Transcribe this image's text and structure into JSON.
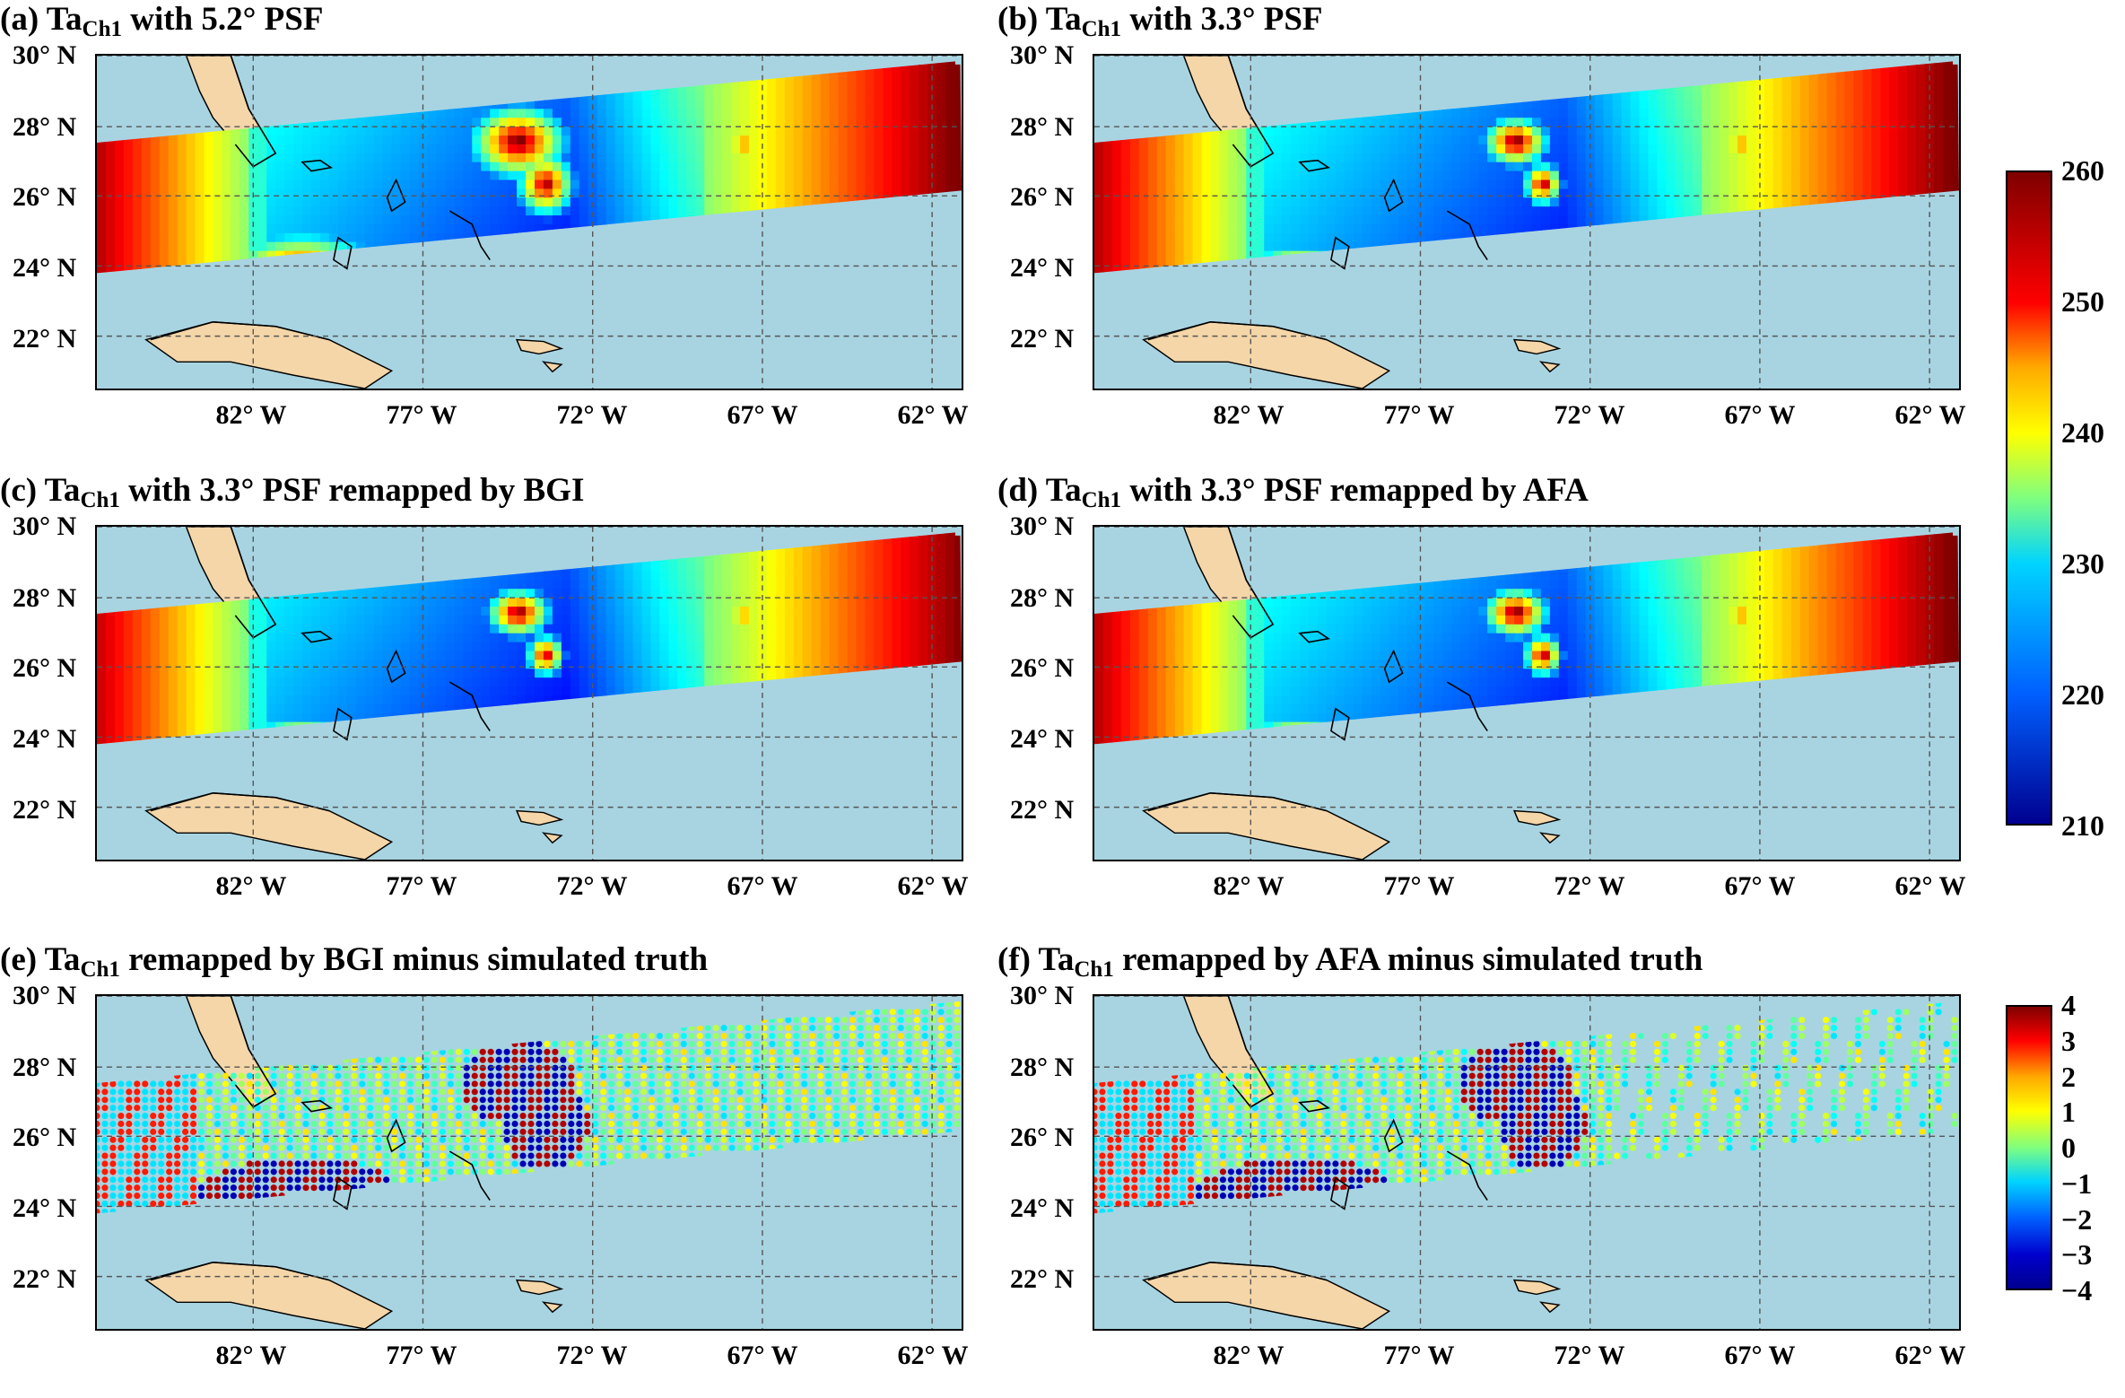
{
  "panels": [
    {
      "prefix": "(a) Ta",
      "sub": "Ch1",
      "suffix": " with 5.2° PSF",
      "kind": "ta",
      "variant": 0
    },
    {
      "prefix": "(b) Ta",
      "sub": "Ch1",
      "suffix": " with 3.3° PSF",
      "kind": "ta",
      "variant": 1
    },
    {
      "prefix": "(c) Ta",
      "sub": "Ch1",
      "suffix": " with 3.3° PSF remapped by BGI",
      "kind": "ta",
      "variant": 2
    },
    {
      "prefix": "(d) Ta",
      "sub": "Ch1",
      "suffix": " with 3.3° PSF remapped by AFA",
      "kind": "ta",
      "variant": 1
    },
    {
      "prefix": "(e) Ta",
      "sub": "Ch1",
      "suffix": " remapped by BGI minus simulated truth",
      "kind": "diff",
      "variant": 0
    },
    {
      "prefix": "(f) Ta",
      "sub": "Ch1",
      "suffix": " remapped by AFA minus simulated truth",
      "kind": "diff",
      "variant": 1
    }
  ],
  "axes": {
    "y_ticks": [
      "30° N",
      "28° N",
      "26° N",
      "24° N",
      "22° N"
    ],
    "x_ticks": [
      "82° W",
      "77° W",
      "72° W",
      "67° W",
      "62° W"
    ]
  },
  "colorbar_ta": {
    "min": 210,
    "max": 260,
    "ticks": [
      "260",
      "250",
      "240",
      "230",
      "220",
      "210"
    ]
  },
  "colorbar_diff": {
    "min": -4,
    "max": 4,
    "ticks": [
      "4",
      "3",
      "2",
      "1",
      "0",
      "−1",
      "−2",
      "−3",
      "−4"
    ]
  },
  "colors": {
    "ocean": "#a8d4e2",
    "land": "#f5d6a8",
    "grid": "#555555"
  },
  "chart_data": [
    {
      "type": "heatmap",
      "title": "(a) TaCh1 with 5.2° PSF",
      "x_range": [
        "85° W",
        "61° W"
      ],
      "y_range": [
        "20.7° N",
        "30.3° N"
      ],
      "value_range": [
        210,
        260
      ]
    },
    {
      "type": "heatmap",
      "title": "(b) TaCh1 with 3.3° PSF",
      "x_range": [
        "85° W",
        "61° W"
      ],
      "y_range": [
        "20.7° N",
        "30.3° N"
      ],
      "value_range": [
        210,
        260
      ]
    },
    {
      "type": "heatmap",
      "title": "(c) TaCh1 with 3.3° PSF remapped by BGI",
      "x_range": [
        "85° W",
        "61° W"
      ],
      "y_range": [
        "20.7° N",
        "30.3° N"
      ],
      "value_range": [
        210,
        260
      ]
    },
    {
      "type": "heatmap",
      "title": "(d) TaCh1 with 3.3° PSF remapped by AFA",
      "x_range": [
        "85° W",
        "61° W"
      ],
      "y_range": [
        "20.7° N",
        "30.3° N"
      ],
      "value_range": [
        210,
        260
      ]
    },
    {
      "type": "heatmap",
      "title": "(e) TaCh1 remapped by BGI minus simulated truth",
      "x_range": [
        "85° W",
        "61° W"
      ],
      "y_range": [
        "20.7° N",
        "30.3° N"
      ],
      "value_range": [
        -4,
        4
      ]
    },
    {
      "type": "heatmap",
      "title": "(f) TaCh1 remapped by AFA minus simulated truth",
      "x_range": [
        "85° W",
        "61° W"
      ],
      "y_range": [
        "20.7° N",
        "30.3° N"
      ],
      "value_range": [
        -4,
        4
      ]
    }
  ]
}
